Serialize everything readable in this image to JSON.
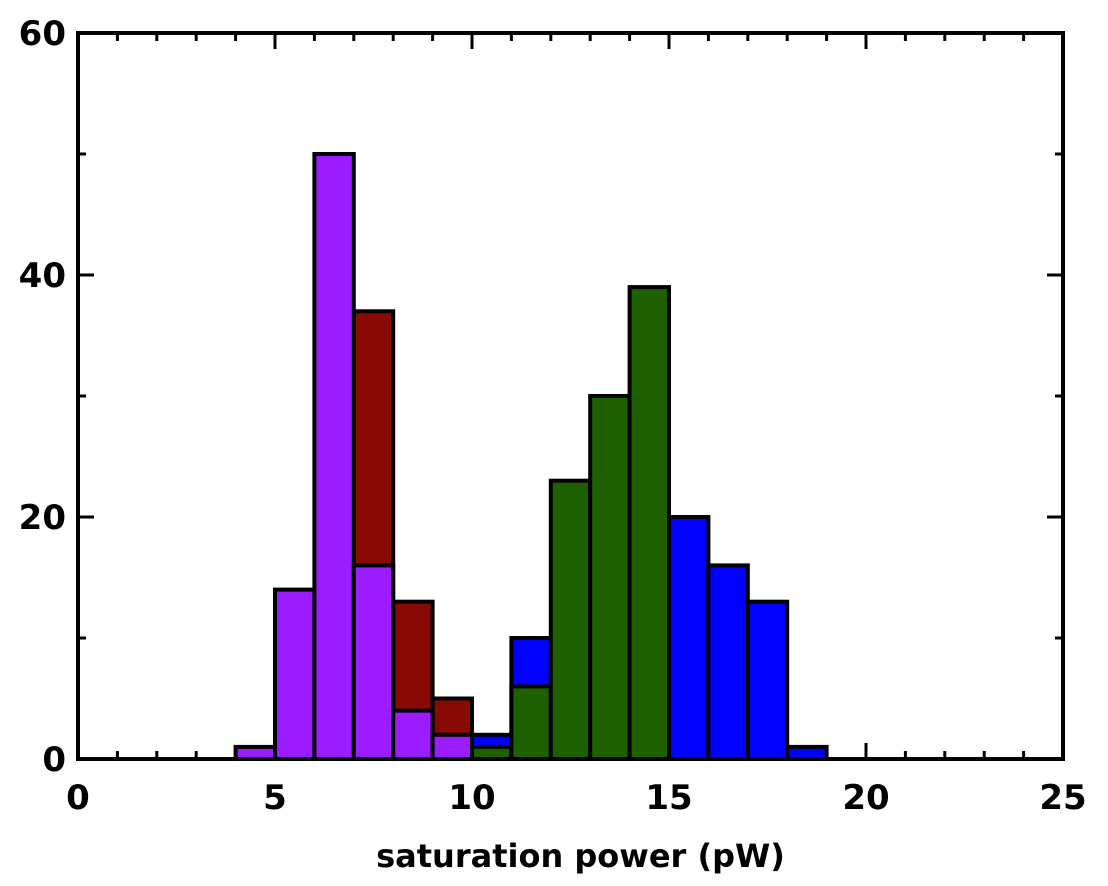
{
  "chart_data": {
    "type": "bar",
    "subtype": "overlapping-histogram",
    "title": "",
    "xlabel": "saturation power (pW)",
    "ylabel": "",
    "xlim": [
      0,
      25
    ],
    "ylim": [
      0,
      60
    ],
    "x_ticks": [
      0,
      5,
      10,
      15,
      20,
      25
    ],
    "y_ticks": [
      0,
      20,
      40,
      60
    ],
    "x_minor_step": 1,
    "y_minor_step": 10,
    "bin_width": 1,
    "grid": false,
    "legend": "none",
    "series": [
      {
        "color": "#0000ff",
        "draw_order": 1,
        "bins": [
          {
            "x0": 10,
            "value": 2
          },
          {
            "x0": 11,
            "value": 10
          },
          {
            "x0": 15,
            "value": 20
          },
          {
            "x0": 16,
            "value": 16
          },
          {
            "x0": 17,
            "value": 13
          },
          {
            "x0": 18,
            "value": 1
          }
        ]
      },
      {
        "color": "#880a05",
        "draw_order": 2,
        "bins": [
          {
            "x0": 7,
            "value": 37
          },
          {
            "x0": 8,
            "value": 13
          },
          {
            "x0": 9,
            "value": 5
          }
        ]
      },
      {
        "color": "#1e5f00",
        "draw_order": 3,
        "bins": [
          {
            "x0": 10,
            "value": 1
          },
          {
            "x0": 11,
            "value": 6
          },
          {
            "x0": 12,
            "value": 23
          },
          {
            "x0": 13,
            "value": 30
          },
          {
            "x0": 14,
            "value": 39
          }
        ]
      },
      {
        "color": "#9b1cff",
        "draw_order": 4,
        "bins": [
          {
            "x0": 4,
            "value": 1
          },
          {
            "x0": 5,
            "value": 14
          },
          {
            "x0": 6,
            "value": 50
          },
          {
            "x0": 7,
            "value": 16
          },
          {
            "x0": 8,
            "value": 4
          },
          {
            "x0": 9,
            "value": 2
          }
        ]
      }
    ]
  }
}
